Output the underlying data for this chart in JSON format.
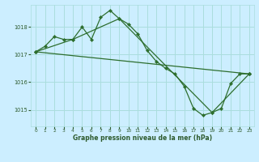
{
  "bg_color": "#cceeff",
  "grid_color": "#aadddd",
  "line_color": "#2d6e2d",
  "marker_color": "#2d6e2d",
  "xlabel": "Graphe pression niveau de la mer (hPa)",
  "ylim": [
    1014.4,
    1018.8
  ],
  "yticks": [
    1015,
    1016,
    1017,
    1018
  ],
  "xticks": [
    0,
    1,
    2,
    3,
    4,
    5,
    6,
    7,
    8,
    9,
    10,
    11,
    12,
    13,
    14,
    15,
    16,
    17,
    18,
    19,
    20,
    21,
    22,
    23
  ],
  "series1_x": [
    0,
    1,
    2,
    3,
    4,
    5,
    6,
    7,
    8,
    9,
    10,
    11,
    12,
    13,
    14,
    15,
    16,
    17,
    18,
    19,
    20,
    21,
    22,
    23
  ],
  "series1_y": [
    1017.1,
    1017.3,
    1017.65,
    1017.55,
    1017.55,
    1018.0,
    1017.55,
    1018.35,
    1018.6,
    1018.3,
    1018.1,
    1017.75,
    1017.15,
    1016.75,
    1016.5,
    1016.3,
    1015.85,
    1015.05,
    1014.8,
    1014.9,
    1015.05,
    1015.95,
    1016.3,
    1016.3
  ],
  "series2_x": [
    0,
    23
  ],
  "series2_y": [
    1017.1,
    1016.3
  ],
  "series3_x": [
    0,
    4,
    9,
    19,
    23
  ],
  "series3_y": [
    1017.1,
    1017.55,
    1018.3,
    1014.9,
    1016.3
  ]
}
